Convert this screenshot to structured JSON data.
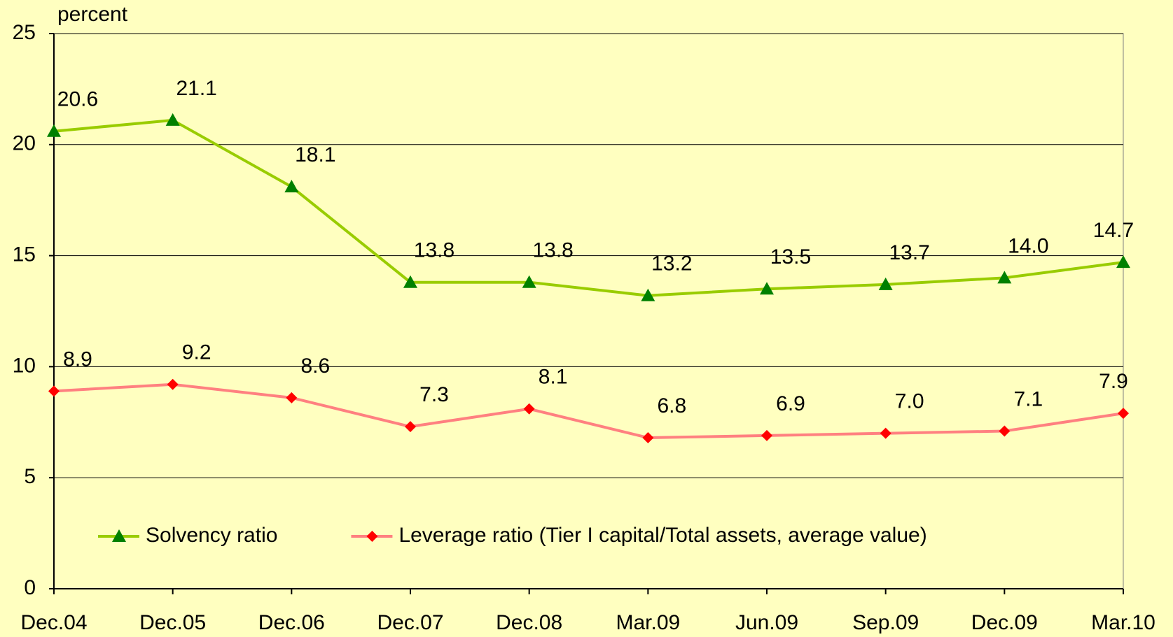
{
  "chart_data": {
    "type": "line",
    "y_label": "percent",
    "categories": [
      "Dec.04",
      "Dec.05",
      "Dec.06",
      "Dec.07",
      "Dec.08",
      "Mar.09",
      "Jun.09",
      "Sep.09",
      "Dec.09",
      "Mar.10"
    ],
    "series": [
      {
        "name": "Solvency ratio",
        "color": "#99cc00",
        "marker_color": "#008000",
        "marker": "triangle",
        "values": [
          20.6,
          21.1,
          18.1,
          13.8,
          13.8,
          13.2,
          13.5,
          13.7,
          14.0,
          14.7
        ],
        "value_labels": [
          "20.6",
          "21.1",
          "18.1",
          "13.8",
          "13.8",
          "13.2",
          "13.5",
          "13.7",
          "14.0",
          "14.7"
        ]
      },
      {
        "name": "Leverage ratio (Tier I capital/Total assets, average value)",
        "color": "#ff8080",
        "marker_color": "#ff0000",
        "marker": "diamond",
        "values": [
          8.9,
          9.2,
          8.6,
          7.3,
          8.1,
          6.8,
          6.9,
          7.0,
          7.1,
          7.9
        ],
        "value_labels": [
          "8.9",
          "9.2",
          "8.6",
          "7.3",
          "8.1",
          "6.8",
          "6.9",
          "7.0",
          "7.1",
          "7.9"
        ]
      }
    ],
    "ylim": [
      0,
      25
    ],
    "yticks": [
      0,
      5,
      10,
      15,
      20,
      25
    ],
    "grid": true,
    "legend": "bottom"
  }
}
